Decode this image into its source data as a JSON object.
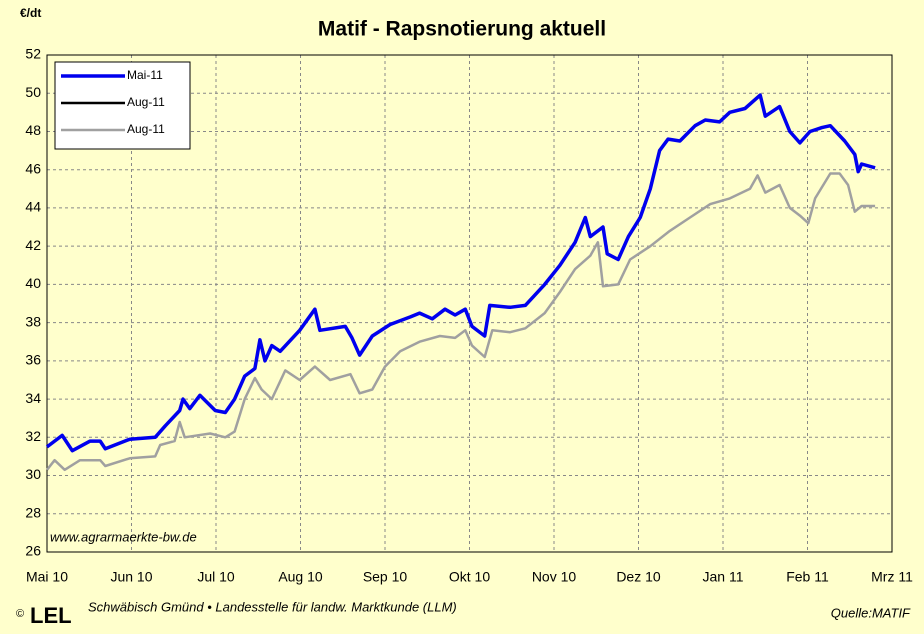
{
  "chart_data": {
    "type": "line",
    "title": "Matif - Rapsnotierung aktuell",
    "y_label": "€/dt",
    "watermark": "www.agrarmaerkte-bw.de",
    "footer": "Schwäbisch Gmünd • Landesstelle für landw. Marktkunde (LLM)",
    "source": "Quelle:MATIF",
    "logo": "LEL",
    "copyright": "©",
    "xlim": [
      0,
      10
    ],
    "xticks": [
      {
        "value": 0,
        "label": "Mai 10"
      },
      {
        "value": 1,
        "label": "Jun 10"
      },
      {
        "value": 2,
        "label": "Jul 10"
      },
      {
        "value": 3,
        "label": "Aug 10"
      },
      {
        "value": 4,
        "label": "Sep 10"
      },
      {
        "value": 5,
        "label": "Okt 10"
      },
      {
        "value": 6,
        "label": "Nov 10"
      },
      {
        "value": 7,
        "label": "Dez 10"
      },
      {
        "value": 8,
        "label": "Jan 11"
      },
      {
        "value": 9,
        "label": "Feb 11"
      },
      {
        "value": 10,
        "label": "Mrz 11"
      }
    ],
    "ylim": [
      26,
      52
    ],
    "yticks": [
      26,
      28,
      30,
      32,
      34,
      36,
      38,
      40,
      42,
      44,
      46,
      48,
      50,
      52
    ],
    "grid": true,
    "legend": "top-left",
    "series": [
      {
        "name": "Mai-11",
        "color": "#0000ee",
        "x": [
          0,
          0.18,
          0.3,
          0.51,
          0.63,
          0.69,
          0.98,
          1.28,
          1.4,
          1.57,
          1.61,
          1.69,
          1.81,
          1.99,
          2.11,
          2.22,
          2.34,
          2.46,
          2.52,
          2.58,
          2.66,
          2.76,
          2.99,
          3.17,
          3.23,
          3.53,
          3.61,
          3.7,
          3.85,
          4.06,
          4.3,
          4.41,
          4.56,
          4.71,
          4.83,
          4.95,
          5.03,
          5.18,
          5.24,
          5.48,
          5.66,
          5.89,
          6.07,
          6.25,
          6.37,
          6.43,
          6.58,
          6.63,
          6.76,
          6.88,
          7.02,
          7.14,
          7.25,
          7.35,
          7.49,
          7.67,
          7.79,
          7.96,
          8.08,
          8.26,
          8.44,
          8.5,
          8.67,
          8.79,
          8.91,
          9.03,
          9.17,
          9.27,
          9.44,
          9.56,
          9.6,
          9.64,
          9.8
        ],
        "values": [
          31.5,
          32.1,
          31.3,
          31.8,
          31.8,
          31.4,
          31.9,
          32.0,
          32.6,
          33.4,
          34.0,
          33.5,
          34.2,
          33.4,
          33.3,
          34.0,
          35.2,
          35.6,
          37.1,
          36.0,
          36.8,
          36.5,
          37.6,
          38.7,
          37.6,
          37.8,
          37.2,
          36.3,
          37.3,
          37.9,
          38.3,
          38.5,
          38.2,
          38.7,
          38.4,
          38.7,
          37.8,
          37.3,
          38.9,
          38.8,
          38.9,
          40.0,
          41.0,
          42.2,
          43.5,
          42.5,
          43.0,
          41.6,
          41.3,
          42.5,
          43.5,
          45.0,
          47.0,
          47.6,
          47.5,
          48.3,
          48.6,
          48.5,
          49.0,
          49.2,
          49.9,
          48.8,
          49.3,
          48.0,
          47.4,
          48.0,
          48.2,
          48.3,
          47.5,
          46.8,
          45.9,
          46.3,
          46.1
        ]
      },
      {
        "name": "Aug-11",
        "color": "#000000",
        "x": [],
        "values": []
      },
      {
        "name": "Aug-11",
        "color": "#a0a0a0",
        "x": [
          0,
          0.09,
          0.21,
          0.39,
          0.63,
          0.69,
          0.98,
          1.28,
          1.34,
          1.51,
          1.57,
          1.63,
          1.93,
          2.11,
          2.22,
          2.34,
          2.46,
          2.54,
          2.66,
          2.82,
          2.99,
          3.17,
          3.35,
          3.59,
          3.7,
          3.85,
          4.0,
          4.18,
          4.41,
          4.65,
          4.83,
          4.95,
          5.03,
          5.18,
          5.27,
          5.48,
          5.66,
          5.89,
          6.07,
          6.25,
          6.43,
          6.52,
          6.58,
          6.76,
          6.9,
          7.14,
          7.37,
          7.61,
          7.85,
          8.08,
          8.32,
          8.41,
          8.5,
          8.67,
          8.79,
          8.91,
          9.01,
          9.09,
          9.27,
          9.38,
          9.48,
          9.56,
          9.64,
          9.8
        ],
        "values": [
          30.3,
          30.8,
          30.3,
          30.8,
          30.8,
          30.5,
          30.9,
          31.0,
          31.6,
          31.8,
          32.8,
          32.0,
          32.2,
          32.0,
          32.3,
          34.0,
          35.1,
          34.5,
          34.0,
          35.5,
          35.0,
          35.7,
          35.0,
          35.3,
          34.3,
          34.5,
          35.7,
          36.5,
          37.0,
          37.3,
          37.2,
          37.6,
          36.8,
          36.2,
          37.6,
          37.5,
          37.7,
          38.5,
          39.6,
          40.8,
          41.5,
          42.2,
          39.9,
          40.0,
          41.3,
          42.0,
          42.8,
          43.5,
          44.2,
          44.5,
          45.0,
          45.7,
          44.8,
          45.2,
          44.0,
          43.6,
          43.2,
          44.5,
          45.8,
          45.8,
          45.2,
          43.8,
          44.1,
          44.1
        ]
      }
    ]
  }
}
